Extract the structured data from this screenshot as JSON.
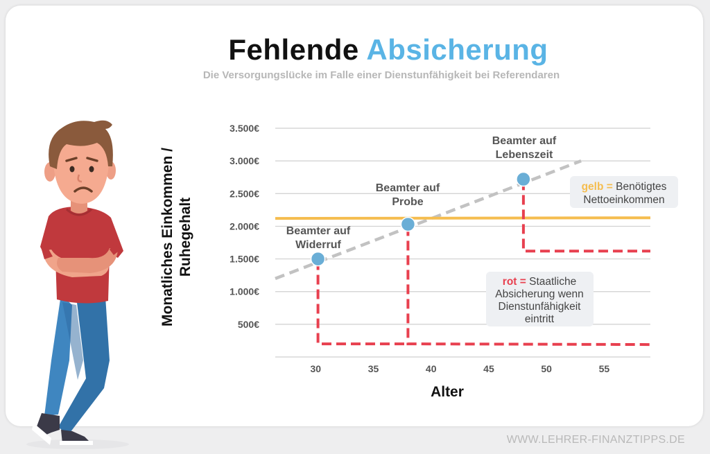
{
  "header": {
    "title_part1": "Fehlende",
    "title_part2": "Absicherung",
    "subtitle": "Die Versorgungslücke im Falle einer Dienstunfähigkeit bei Referendaren"
  },
  "footer": {
    "url": "WWW.LEHRER-FINANZTIPPS.DE"
  },
  "colors": {
    "accent": "#5ab4e5",
    "required_line": "#f5bd4f",
    "state_line": "#e8404f",
    "trend_line": "#c2c2c2",
    "point": "#6aaed6"
  },
  "chart_data": {
    "type": "line",
    "xlabel": "Alter",
    "ylabel_line1": "Monatliches Einkommen /",
    "ylabel_line2": "Ruhegehalt",
    "xlim": [
      26.5,
      59
    ],
    "ylim": [
      0,
      3500
    ],
    "xticks": [
      30,
      35,
      40,
      45,
      50,
      55
    ],
    "yticks": [
      {
        "value": 500,
        "label": "500€"
      },
      {
        "value": 1000,
        "label": "1.000€"
      },
      {
        "value": 1500,
        "label": "1.500€"
      },
      {
        "value": 2000,
        "label": "2.000€"
      },
      {
        "value": 2500,
        "label": "2.500€"
      },
      {
        "value": 3000,
        "label": "3.000€"
      },
      {
        "value": 3500,
        "label": "3.500€"
      }
    ],
    "grid": true,
    "income_trend": {
      "x": [
        26.5,
        53
      ],
      "y": [
        1200,
        3000
      ]
    },
    "required_net_income": {
      "x": [
        26.5,
        59
      ],
      "y": [
        2120,
        2130
      ]
    },
    "state_protection": {
      "x": [
        30.2,
        30.2,
        38,
        38,
        48,
        48,
        59
      ],
      "y": [
        1480,
        200,
        200,
        2000,
        2700,
        1620,
        1620
      ],
      "second_segment": {
        "x": [
          38,
          59
        ],
        "y": [
          200,
          190
        ]
      }
    },
    "milestones": [
      {
        "x": 30.2,
        "y": 1500,
        "label_line1": "Beamter auf",
        "label_line2": "Widerruf"
      },
      {
        "x": 38,
        "y": 2030,
        "label_line1": "Beamter auf",
        "label_line2": "Probe"
      },
      {
        "x": 48,
        "y": 2720,
        "label_line1": "Beamter auf",
        "label_line2": "Lebenszeit"
      }
    ],
    "legend": {
      "yellow": {
        "key": "gelb =",
        "line1": " Benötigtes",
        "line2": "Nettoeinkommen"
      },
      "red": {
        "key": "rot =",
        "line1": " Staatliche",
        "line2": "Absicherung wenn",
        "line3": "Dienstunfähigkeit",
        "line4": "eintritt"
      }
    }
  }
}
